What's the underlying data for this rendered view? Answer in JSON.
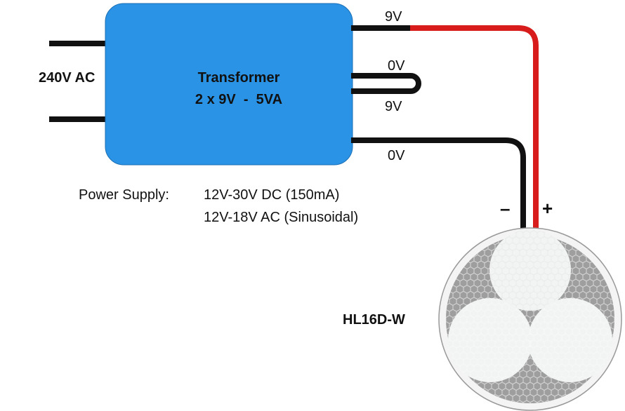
{
  "input_label": "240V AC",
  "transformer": {
    "title": "Transformer",
    "rating": "2 x 9V  -  5VA"
  },
  "outputs": [
    "9V",
    "0V",
    "9V",
    "0V"
  ],
  "power_supply": {
    "label": "Power Supply:",
    "lines": [
      "12V-30V DC (150mA)",
      "12V-18V AC (Sinusoidal)"
    ]
  },
  "polarity": {
    "negative": "–",
    "positive": "+"
  },
  "device": {
    "label": "HL16D-W"
  }
}
